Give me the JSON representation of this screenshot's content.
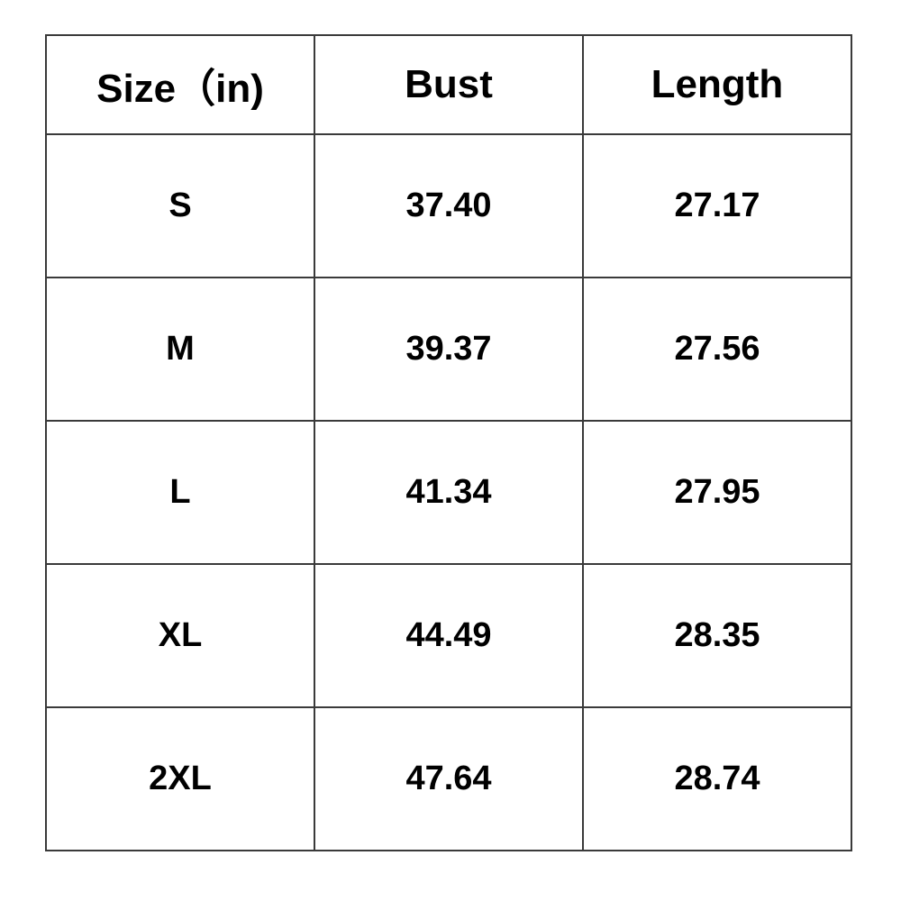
{
  "table": {
    "header": [
      "Size（in)",
      "Bust",
      "Length"
    ],
    "rows": [
      [
        "S",
        "37.40",
        "27.17"
      ],
      [
        "M",
        "39.37",
        "27.56"
      ],
      [
        "L",
        "41.34",
        "27.95"
      ],
      [
        "XL",
        "44.49",
        "28.35"
      ],
      [
        "2XL",
        "47.64",
        "28.74"
      ]
    ]
  }
}
